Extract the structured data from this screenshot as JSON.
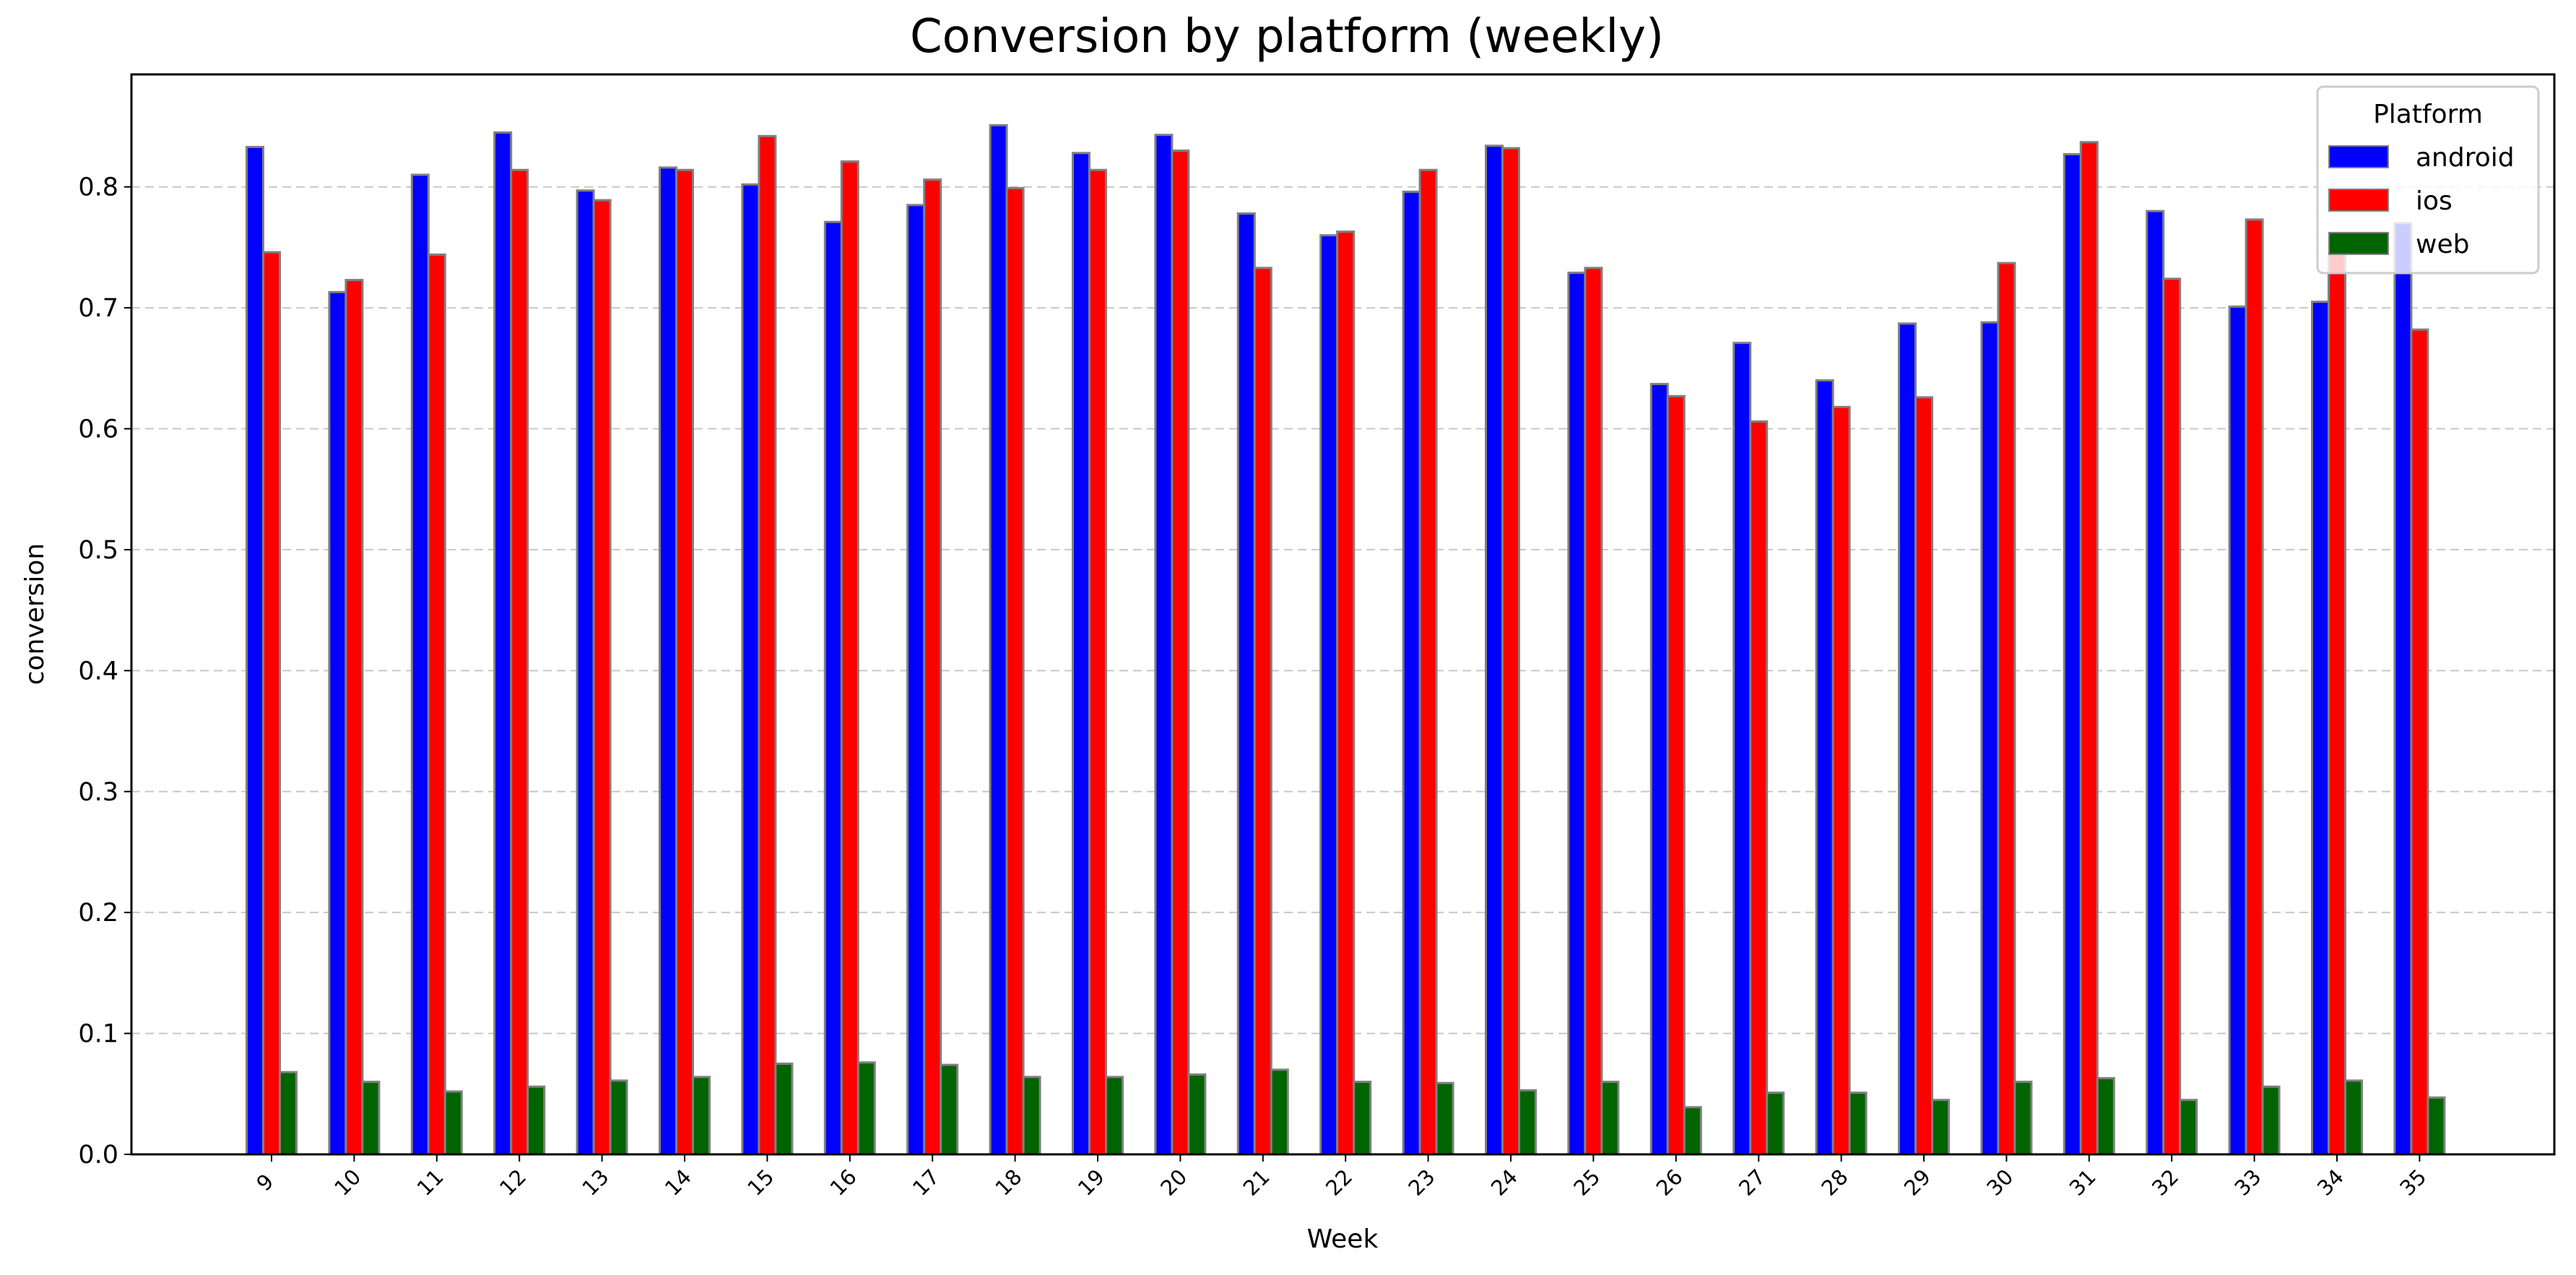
{
  "chart_data": {
    "type": "bar",
    "title": "Conversion by platform (weekly)",
    "xlabel": "Week",
    "ylabel": "conversion",
    "ylim": [
      0,
      0.893
    ],
    "yticks": [
      "0.0",
      "0.1",
      "0.2",
      "0.3",
      "0.4",
      "0.5",
      "0.6",
      "0.7",
      "0.8"
    ],
    "grid": "y-dashed",
    "legend": {
      "title": "Platform",
      "placement": "top-right"
    },
    "categories": [
      "9",
      "10",
      "11",
      "12",
      "13",
      "14",
      "15",
      "16",
      "17",
      "18",
      "19",
      "20",
      "21",
      "22",
      "23",
      "24",
      "25",
      "26",
      "27",
      "28",
      "29",
      "30",
      "31",
      "32",
      "33",
      "34",
      "35"
    ],
    "series": [
      {
        "name": "android",
        "color": "#0000ff",
        "values": [
          0.833,
          0.713,
          0.81,
          0.845,
          0.797,
          0.816,
          0.802,
          0.771,
          0.785,
          0.851,
          0.828,
          0.843,
          0.778,
          0.76,
          0.796,
          0.834,
          0.729,
          0.637,
          0.671,
          0.64,
          0.687,
          0.688,
          0.827,
          0.78,
          0.701,
          0.705,
          0.77
        ]
      },
      {
        "name": "ios",
        "color": "#ff0000",
        "values": [
          0.746,
          0.723,
          0.744,
          0.814,
          0.789,
          0.814,
          0.842,
          0.821,
          0.806,
          0.799,
          0.814,
          0.83,
          0.733,
          0.763,
          0.814,
          0.832,
          0.733,
          0.627,
          0.606,
          0.618,
          0.626,
          0.737,
          0.837,
          0.724,
          0.773,
          0.745,
          0.682
        ]
      },
      {
        "name": "web",
        "color": "#006400",
        "values": [
          0.068,
          0.06,
          0.052,
          0.056,
          0.061,
          0.064,
          0.075,
          0.076,
          0.074,
          0.064,
          0.064,
          0.066,
          0.07,
          0.06,
          0.059,
          0.053,
          0.06,
          0.039,
          0.051,
          0.051,
          0.045,
          0.06,
          0.063,
          0.045,
          0.056,
          0.061,
          0.047
        ]
      }
    ]
  }
}
